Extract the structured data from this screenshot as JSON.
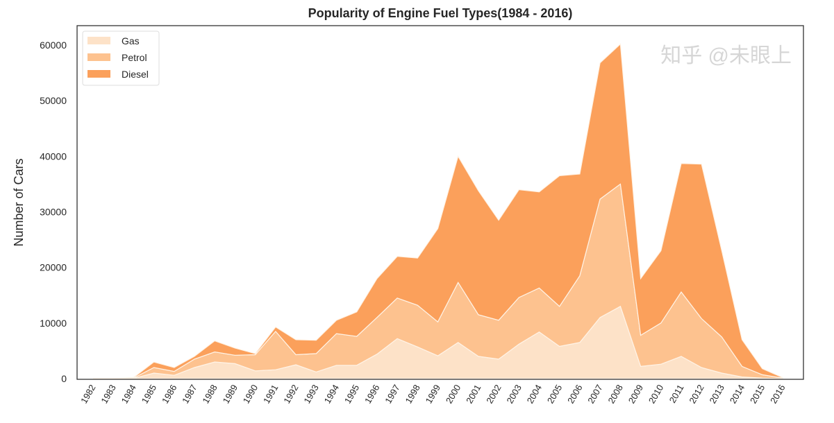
{
  "chart_data": {
    "type": "area",
    "stacked": true,
    "title": "Popularity of Engine Fuel Types(1984 - 2016)",
    "xlabel": "",
    "ylabel": "Number of Cars",
    "ylim": [
      0,
      63500
    ],
    "yticks": [
      0,
      10000,
      20000,
      30000,
      40000,
      50000,
      60000
    ],
    "grid": false,
    "legend": "top-left",
    "x": [
      1982,
      1983,
      1984,
      1985,
      1986,
      1987,
      1988,
      1989,
      1990,
      1991,
      1992,
      1993,
      1994,
      1995,
      1996,
      1997,
      1998,
      1999,
      2000,
      2001,
      2002,
      2003,
      2004,
      2005,
      2006,
      2007,
      2008,
      2009,
      2010,
      2011,
      2012,
      2013,
      2014,
      2015,
      2016
    ],
    "series": [
      {
        "name": "Gas",
        "color": "#fde2c8",
        "values": [
          0,
          0,
          50,
          1000,
          600,
          2000,
          3000,
          2700,
          1400,
          1600,
          2500,
          1200,
          2400,
          2400,
          4400,
          7200,
          5700,
          4100,
          6500,
          4000,
          3500,
          6200,
          8400,
          5800,
          6500,
          11000,
          13000,
          2200,
          2600,
          4000,
          2000,
          1000,
          300,
          100,
          0
        ]
      },
      {
        "name": "Petrol",
        "color": "#fdc28f",
        "values": [
          0,
          0,
          50,
          1000,
          700,
          1500,
          1800,
          1500,
          2900,
          6900,
          1800,
          3300,
          5700,
          5200,
          6600,
          7300,
          7500,
          6100,
          10800,
          7500,
          7000,
          8400,
          7900,
          7200,
          12000,
          21300,
          22000,
          5600,
          7400,
          11600,
          8800,
          6500,
          1900,
          600,
          100
        ]
      },
      {
        "name": "Diesel",
        "color": "#fba05b",
        "values": [
          0,
          0,
          100,
          1000,
          700,
          500,
          2000,
          1300,
          200,
          800,
          2700,
          2400,
          2400,
          4400,
          7000,
          7500,
          8500,
          16800,
          22700,
          22300,
          18000,
          19400,
          17300,
          23500,
          18300,
          24500,
          25200,
          10200,
          13000,
          23100,
          27800,
          15500,
          4800,
          1100,
          100
        ]
      }
    ]
  },
  "watermark": "知乎 @未眼上"
}
